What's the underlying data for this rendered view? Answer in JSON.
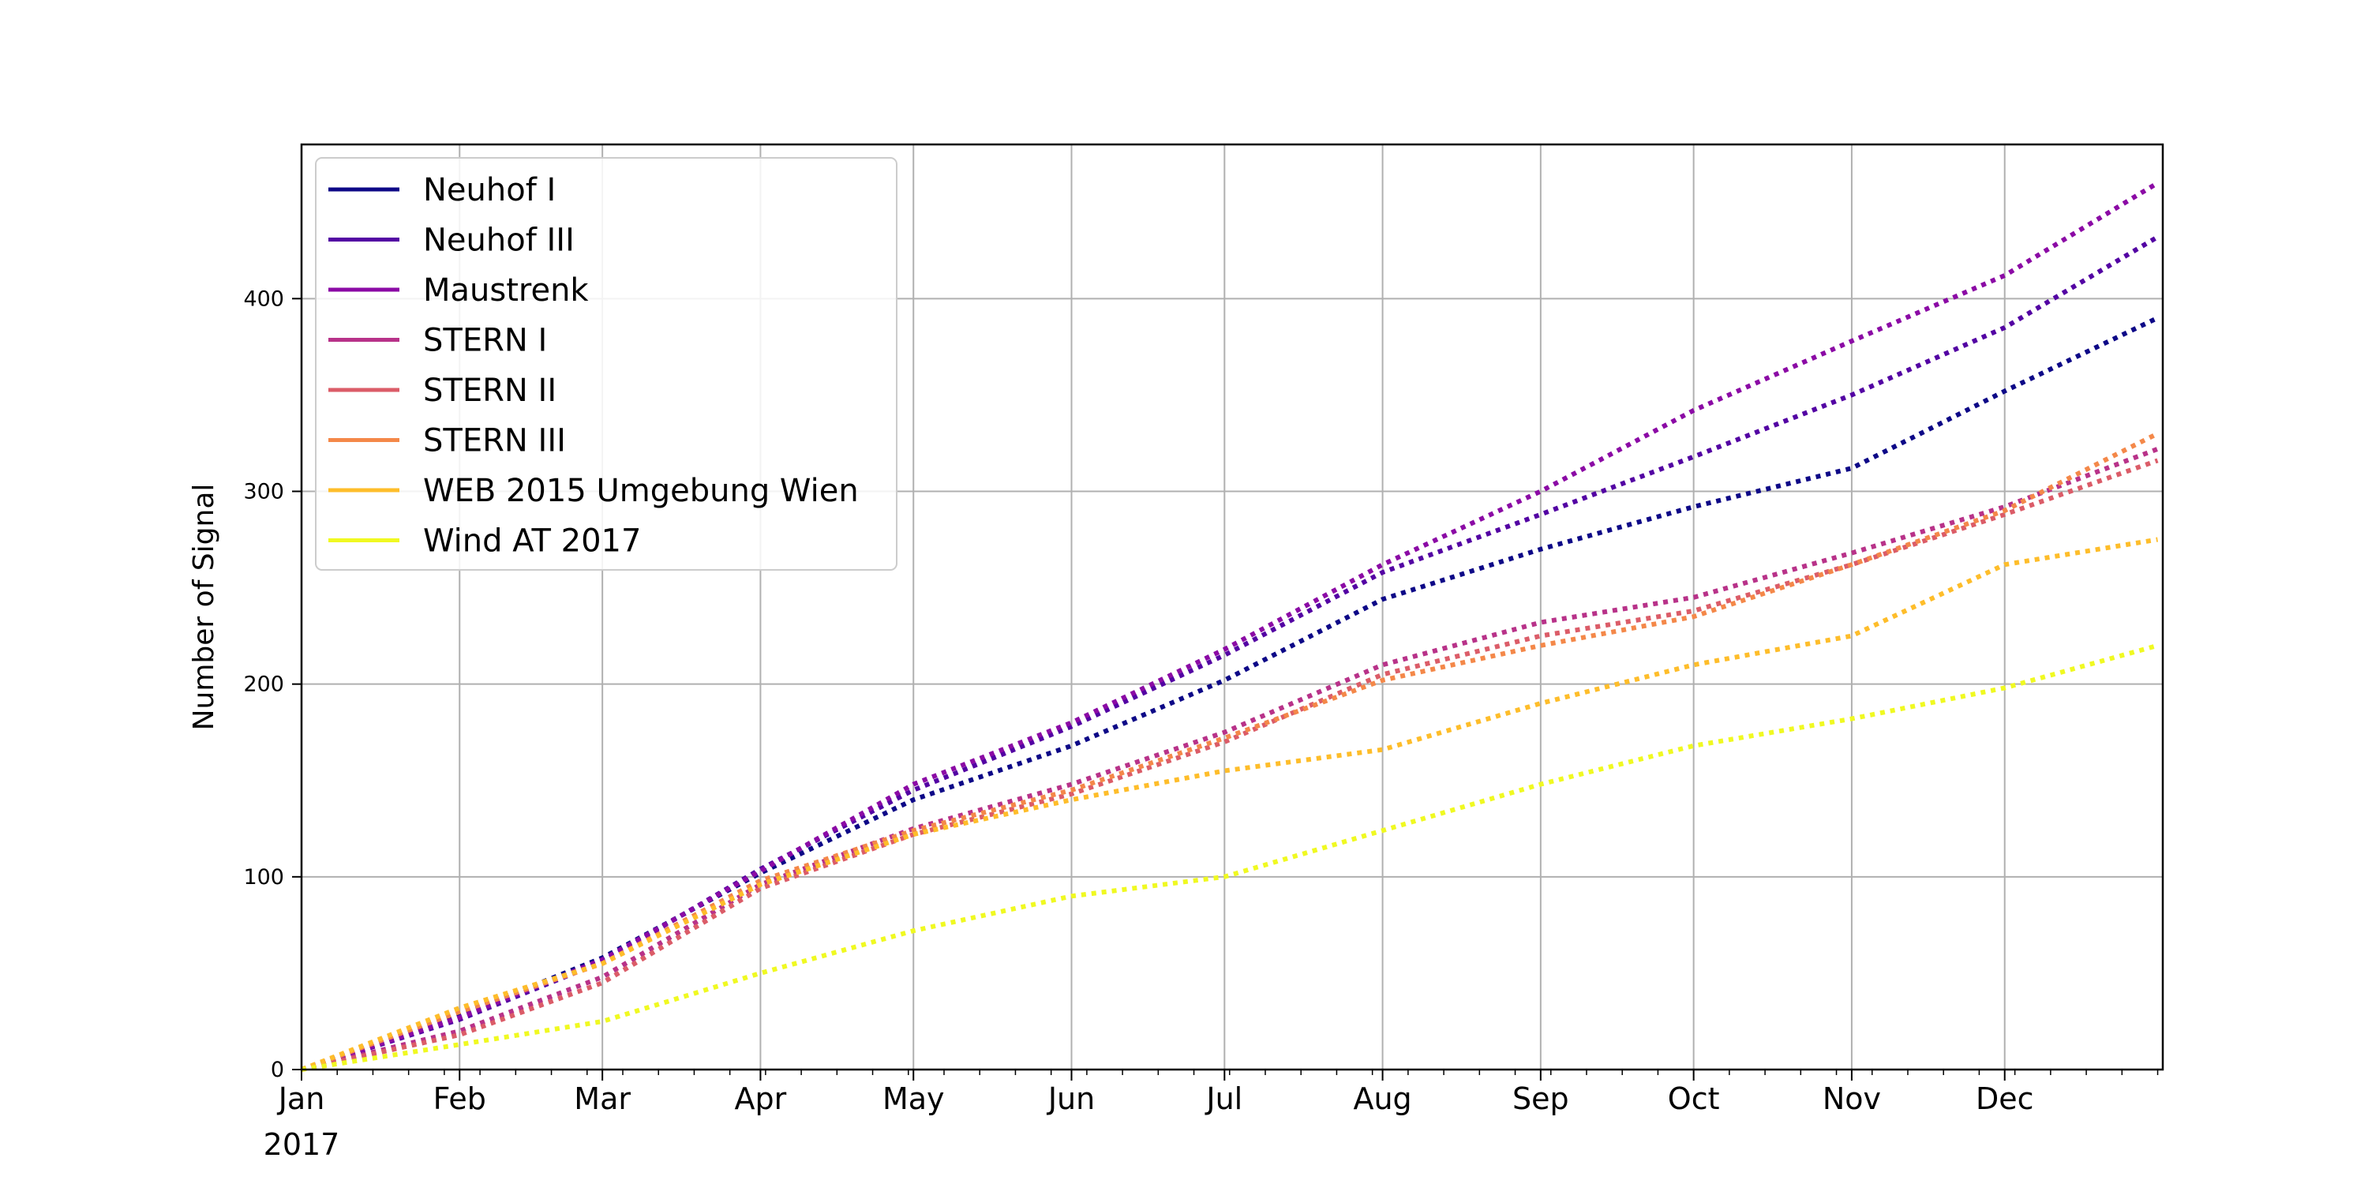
{
  "chart_data": {
    "type": "line",
    "title": "",
    "xlabel": "",
    "ylabel": "Number of Signal",
    "x_axis": {
      "type": "date",
      "range": [
        "2017-01-01",
        "2018-01-01"
      ],
      "tick_dates": [
        "2017-01-01",
        "2017-02-01",
        "2017-03-01",
        "2017-04-01",
        "2017-05-01",
        "2017-06-01",
        "2017-07-01",
        "2017-08-01",
        "2017-09-01",
        "2017-10-01",
        "2017-11-01",
        "2017-12-01"
      ],
      "tick_labels": [
        "Jan",
        "Feb",
        "Mar",
        "Apr",
        "May",
        "Jun",
        "Jul",
        "Aug",
        "Sep",
        "Oct",
        "Nov",
        "Dec"
      ],
      "year_label": "2017"
    },
    "y_axis": {
      "range": [
        0,
        480
      ],
      "ticks": [
        0,
        100,
        200,
        300,
        400
      ]
    },
    "grid": true,
    "legend_position": "upper-left",
    "line_style": "dotted",
    "series": [
      {
        "name": "Neuhof I",
        "color": "#0d0887",
        "x": [
          "2017-01-01",
          "2017-02-01",
          "2017-03-01",
          "2017-04-01",
          "2017-05-01",
          "2017-06-01",
          "2017-07-01",
          "2017-08-01",
          "2017-09-01",
          "2017-10-01",
          "2017-11-01",
          "2017-12-01",
          "2017-12-31"
        ],
        "y": [
          0,
          28,
          58,
          102,
          140,
          168,
          202,
          244,
          270,
          292,
          312,
          352,
          390
        ]
      },
      {
        "name": "Neuhof III",
        "color": "#5302a3",
        "x": [
          "2017-01-01",
          "2017-02-01",
          "2017-03-01",
          "2017-04-01",
          "2017-05-01",
          "2017-06-01",
          "2017-07-01",
          "2017-08-01",
          "2017-09-01",
          "2017-10-01",
          "2017-11-01",
          "2017-12-01",
          "2017-12-31"
        ],
        "y": [
          0,
          26,
          56,
          104,
          145,
          178,
          215,
          258,
          288,
          318,
          350,
          385,
          432
        ]
      },
      {
        "name": "Maustrenk",
        "color": "#8b0aa5",
        "x": [
          "2017-01-01",
          "2017-02-01",
          "2017-03-01",
          "2017-04-01",
          "2017-05-01",
          "2017-06-01",
          "2017-07-01",
          "2017-08-01",
          "2017-09-01",
          "2017-10-01",
          "2017-11-01",
          "2017-12-01",
          "2017-12-31"
        ],
        "y": [
          0,
          27,
          57,
          103,
          148,
          180,
          218,
          262,
          300,
          342,
          378,
          412,
          460
        ]
      },
      {
        "name": "STERN I",
        "color": "#b83289",
        "x": [
          "2017-01-01",
          "2017-02-01",
          "2017-03-01",
          "2017-04-01",
          "2017-05-01",
          "2017-06-01",
          "2017-07-01",
          "2017-08-01",
          "2017-09-01",
          "2017-10-01",
          "2017-11-01",
          "2017-12-01",
          "2017-12-31"
        ],
        "y": [
          0,
          20,
          48,
          96,
          125,
          148,
          175,
          210,
          232,
          245,
          268,
          292,
          322
        ]
      },
      {
        "name": "STERN II",
        "color": "#db5c68",
        "x": [
          "2017-01-01",
          "2017-02-01",
          "2017-03-01",
          "2017-04-01",
          "2017-05-01",
          "2017-06-01",
          "2017-07-01",
          "2017-08-01",
          "2017-09-01",
          "2017-10-01",
          "2017-11-01",
          "2017-12-01",
          "2017-12-31"
        ],
        "y": [
          0,
          18,
          45,
          94,
          122,
          143,
          170,
          205,
          225,
          238,
          262,
          288,
          316
        ]
      },
      {
        "name": "STERN III",
        "color": "#f48849",
        "x": [
          "2017-01-01",
          "2017-02-01",
          "2017-03-01",
          "2017-04-01",
          "2017-05-01",
          "2017-06-01",
          "2017-07-01",
          "2017-08-01",
          "2017-09-01",
          "2017-10-01",
          "2017-11-01",
          "2017-12-01",
          "2017-12-31"
        ],
        "y": [
          0,
          30,
          55,
          98,
          124,
          145,
          172,
          202,
          220,
          235,
          262,
          290,
          330
        ]
      },
      {
        "name": "WEB 2015 Umgebung Wien",
        "color": "#febd2a",
        "x": [
          "2017-01-01",
          "2017-02-01",
          "2017-03-01",
          "2017-04-01",
          "2017-05-01",
          "2017-06-01",
          "2017-07-01",
          "2017-08-01",
          "2017-09-01",
          "2017-10-01",
          "2017-11-01",
          "2017-12-01",
          "2017-12-31"
        ],
        "y": [
          0,
          32,
          55,
          96,
          122,
          140,
          155,
          166,
          190,
          210,
          225,
          262,
          275
        ]
      },
      {
        "name": "Wind AT 2017",
        "color": "#f0f921",
        "x": [
          "2017-01-01",
          "2017-02-01",
          "2017-03-01",
          "2017-04-01",
          "2017-05-01",
          "2017-06-01",
          "2017-07-01",
          "2017-08-01",
          "2017-09-01",
          "2017-10-01",
          "2017-11-01",
          "2017-12-01",
          "2017-12-31"
        ],
        "y": [
          0,
          13,
          25,
          50,
          72,
          90,
          100,
          124,
          148,
          168,
          182,
          198,
          220
        ]
      }
    ]
  }
}
